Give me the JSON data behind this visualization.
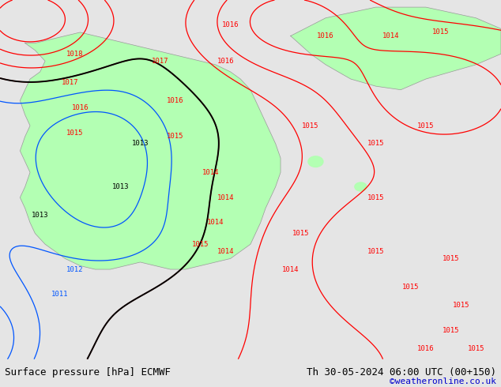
{
  "title_left": "Surface pressure [hPa] ECMWF",
  "title_right": "Th 30-05-2024 06:00 UTC (00+150)",
  "copyright": "©weatheronline.co.uk",
  "bg_color_gray": "#e5e5e5",
  "land_green": "#b3ffb3",
  "contour_red": "#ff0000",
  "contour_black": "#000000",
  "contour_blue": "#0055ff",
  "bottom_bar_color": "#c8c8c8",
  "bottom_text_color": "#000000",
  "copyright_color": "#0000cc",
  "font_size_bottom": 9,
  "font_size_labels": 7
}
